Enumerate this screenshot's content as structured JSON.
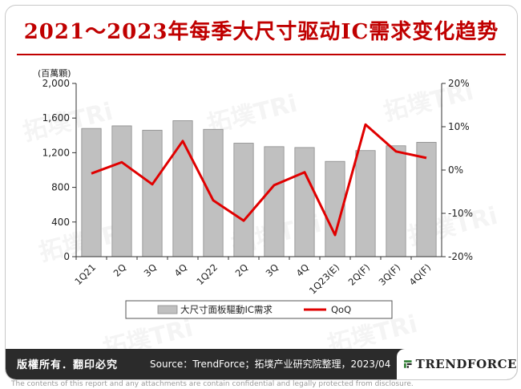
{
  "title": "2021～2023年每季大尺寸驱动IC需求变化趋势",
  "footer": {
    "copyright": "版權所有．翻印必究",
    "source": "Source：TrendForce；拓墣产业研究院整理，2023/04",
    "brand": "TRENDFORCE"
  },
  "disclaimer": "The contents of this report and any attachments are contain confidential and legally protected from disclosure.",
  "watermark": "拓墣TRi",
  "colors": {
    "accent": "#c00000",
    "bar": "#c0c0c0",
    "line": "#e00000",
    "footer": "#2b2b2b"
  },
  "chart_data": {
    "type": "bar",
    "title": "",
    "unit_label": "(百萬顆)",
    "categories": [
      "1Q21",
      "2Q",
      "3Q",
      "4Q",
      "1Q22",
      "2Q",
      "3Q",
      "4Q",
      "1Q23(E)",
      "2Q(F)",
      "3Q(F)",
      "4Q(F)"
    ],
    "series": [
      {
        "name": "大尺寸面板驅動IC需求",
        "type": "bar",
        "axis": "left",
        "values": [
          1480,
          1510,
          1460,
          1570,
          1470,
          1310,
          1270,
          1260,
          1100,
          1225,
          1280,
          1320
        ]
      },
      {
        "name": "QoQ",
        "type": "line",
        "axis": "right",
        "values": [
          -0.8,
          1.8,
          -3.3,
          6.7,
          -7.0,
          -11.7,
          -3.5,
          -0.5,
          -15.0,
          10.5,
          4.3,
          2.8
        ]
      }
    ],
    "left_axis": {
      "ylim": [
        0,
        2000
      ],
      "ticks": [
        0,
        400,
        800,
        1200,
        1600,
        2000
      ],
      "tick_labels": [
        "0",
        "400",
        "800",
        "1,200",
        "1,600",
        "2,000"
      ]
    },
    "right_axis": {
      "ylim": [
        -20,
        20
      ],
      "ticks": [
        -20,
        -10,
        0,
        10,
        20
      ],
      "tick_labels": [
        "-20%",
        "-10%",
        "0%",
        "10%",
        "20%"
      ]
    },
    "grid": false,
    "legend": "bottom"
  }
}
